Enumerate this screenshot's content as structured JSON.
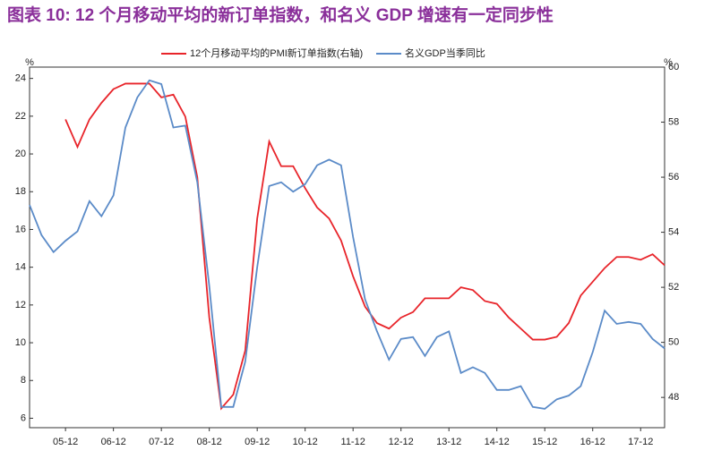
{
  "chart_data": {
    "type": "line",
    "title": "图表 10: 12 个月移动平均的新订单指数，和名义 GDP 增速有一定同步性",
    "y_unit": "%",
    "y2_unit": "%",
    "x": [
      "05-03",
      "05-06",
      "05-09",
      "05-12",
      "06-03",
      "06-06",
      "06-09",
      "06-12",
      "07-03",
      "07-06",
      "07-09",
      "07-12",
      "08-03",
      "08-06",
      "08-09",
      "08-12",
      "09-03",
      "09-06",
      "09-09",
      "09-12",
      "10-03",
      "10-06",
      "10-09",
      "10-12",
      "11-03",
      "11-06",
      "11-09",
      "11-12",
      "12-03",
      "12-06",
      "12-09",
      "12-12",
      "13-03",
      "13-06",
      "13-09",
      "13-12",
      "14-03",
      "14-06",
      "14-09",
      "14-12",
      "15-03",
      "15-06",
      "15-09",
      "15-12",
      "16-03",
      "16-06",
      "16-09",
      "16-12",
      "17-03",
      "17-06",
      "17-09",
      "17-12",
      "18-03",
      "18-06"
    ],
    "xticks": [
      "05-12",
      "06-12",
      "07-12",
      "08-12",
      "09-12",
      "10-12",
      "11-12",
      "12-12",
      "13-12",
      "14-12",
      "15-12",
      "16-12",
      "17-12"
    ],
    "ylim": [
      5.5,
      24.6
    ],
    "yticks": [
      6,
      8,
      10,
      12,
      14,
      16,
      18,
      20,
      22,
      24
    ],
    "y2lim": [
      46.9,
      60
    ],
    "y2ticks": [
      48,
      50,
      52,
      54,
      56,
      58,
      60
    ],
    "series": [
      {
        "name": "12个月移动平均的PMI新订单指数(右轴)",
        "color": "#e8242a",
        "axis": "y2",
        "values": [
          null,
          null,
          null,
          58.1,
          57.1,
          58.1,
          58.7,
          59.2,
          59.4,
          59.4,
          59.4,
          58.9,
          59.0,
          58.2,
          56.0,
          50.9,
          47.6,
          48.1,
          49.7,
          54.5,
          57.3,
          56.4,
          56.4,
          55.6,
          54.9,
          54.5,
          53.7,
          52.4,
          51.3,
          50.7,
          50.5,
          50.9,
          51.1,
          51.6,
          51.6,
          51.6,
          52.0,
          51.9,
          51.5,
          51.4,
          50.9,
          50.5,
          50.1,
          50.1,
          50.2,
          50.7,
          51.7,
          52.2,
          52.7,
          53.1,
          53.1,
          53.0,
          53.2,
          52.8
        ]
      },
      {
        "name": "名义GDP当季同比",
        "color": "#5b8bc8",
        "values": [
          17.3,
          15.7,
          14.8,
          15.4,
          15.9,
          17.5,
          16.7,
          17.8,
          21.4,
          23.0,
          23.9,
          23.7,
          21.4,
          21.5,
          18.5,
          13.0,
          6.6,
          6.6,
          9.0,
          14.0,
          18.3,
          18.5,
          18.0,
          18.4,
          19.4,
          19.7,
          19.4,
          15.6,
          12.3,
          10.6,
          9.1,
          10.2,
          10.3,
          9.3,
          10.3,
          10.6,
          8.4,
          8.7,
          8.4,
          7.5,
          7.5,
          7.7,
          6.6,
          6.5,
          7.0,
          7.2,
          7.7,
          9.5,
          11.7,
          11.0,
          11.1,
          11.0,
          10.2,
          9.7
        ]
      }
    ]
  }
}
